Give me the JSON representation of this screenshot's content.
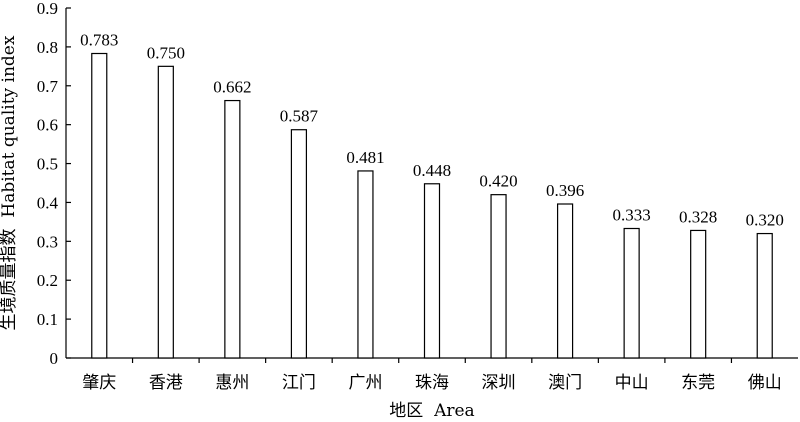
{
  "chart_data": {
    "type": "bar",
    "categories": [
      "肇庆",
      "香港",
      "惠州",
      "江门",
      "广州",
      "珠海",
      "深圳",
      "澳门",
      "中山",
      "东莞",
      "佛山"
    ],
    "values": [
      0.783,
      0.75,
      0.662,
      0.587,
      0.481,
      0.448,
      0.42,
      0.396,
      0.333,
      0.328,
      0.32
    ],
    "data_labels": [
      "0.783",
      "0.750",
      "0.662",
      "0.587",
      "0.481",
      "0.448",
      "0.420",
      "0.396",
      "0.333",
      "0.328",
      "0.320"
    ],
    "title": "",
    "xlabel": "地区  Area",
    "ylabel": "生境质量指数  Habitat quality index",
    "ylim": [
      0,
      0.9
    ],
    "yticks": [
      0,
      0.1,
      0.2,
      0.3,
      0.4,
      0.5,
      0.6,
      0.7,
      0.8,
      0.9
    ],
    "ytick_labels": [
      "0",
      "0.1",
      "0.2",
      "0.3",
      "0.4",
      "0.5",
      "0.6",
      "0.7",
      "0.8",
      "0.9"
    ],
    "grid": false,
    "legend": "none",
    "bar_fill": "#ffffff",
    "bar_stroke": "#000000"
  }
}
